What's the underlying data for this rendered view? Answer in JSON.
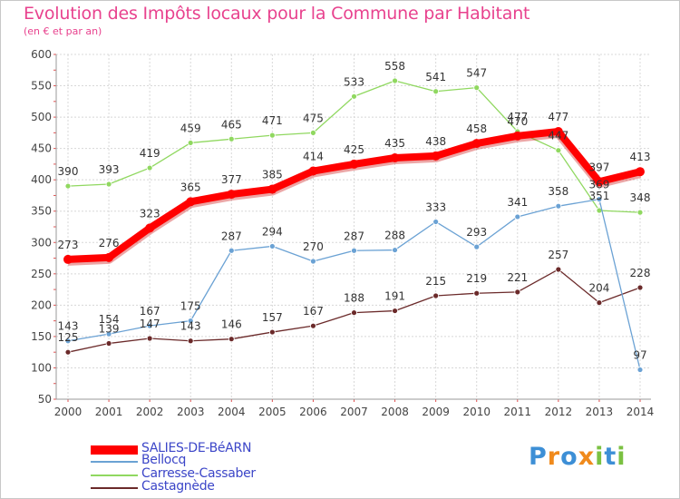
{
  "header": {
    "title": "Evolution des Impôts locaux pour la Commune par Habitant",
    "subtitle": "(en € et par an)"
  },
  "chart_data": {
    "type": "line",
    "title": "Evolution des Impôts locaux pour la Commune par Habitant",
    "subtitle": "(en € et par an)",
    "xlabel": "",
    "ylabel": "",
    "ylim": [
      50,
      600
    ],
    "y_ticks": [
      50,
      100,
      150,
      200,
      250,
      300,
      350,
      400,
      450,
      500,
      550,
      600
    ],
    "categories": [
      "2000",
      "2001",
      "2002",
      "2003",
      "2004",
      "2005",
      "2006",
      "2007",
      "2008",
      "2009",
      "2010",
      "2011",
      "2012",
      "2013",
      "2014"
    ],
    "grid": true,
    "legend_position": "bottom-left",
    "series": [
      {
        "name": "SALIES-DE-BéARN",
        "color": "#ff0000",
        "values": [
          273,
          276,
          323,
          365,
          377,
          385,
          414,
          425,
          435,
          438,
          458,
          470,
          477,
          397,
          413
        ]
      },
      {
        "name": "Bellocq",
        "color": "#6ba2d4",
        "values": [
          143,
          154,
          167,
          175,
          287,
          294,
          270,
          287,
          288,
          333,
          293,
          341,
          358,
          369,
          97
        ]
      },
      {
        "name": "Carresse-Cassaber",
        "color": "#90d860",
        "values": [
          390,
          393,
          419,
          459,
          465,
          471,
          475,
          533,
          558,
          541,
          547,
          477,
          447,
          351,
          348
        ]
      },
      {
        "name": "Castagnède",
        "color": "#6b2a2a",
        "values": [
          125,
          139,
          147,
          143,
          146,
          157,
          167,
          188,
          191,
          215,
          219,
          221,
          257,
          204,
          228
        ]
      }
    ]
  },
  "logo": {
    "letters": [
      "P",
      "r",
      "o",
      "x",
      "i",
      "t",
      "i"
    ],
    "colors": [
      "#3d8fd6",
      "#f08a1c",
      "#3d8fd6",
      "#f08a1c",
      "#7bc142",
      "#3d8fd6",
      "#7bc142"
    ]
  }
}
